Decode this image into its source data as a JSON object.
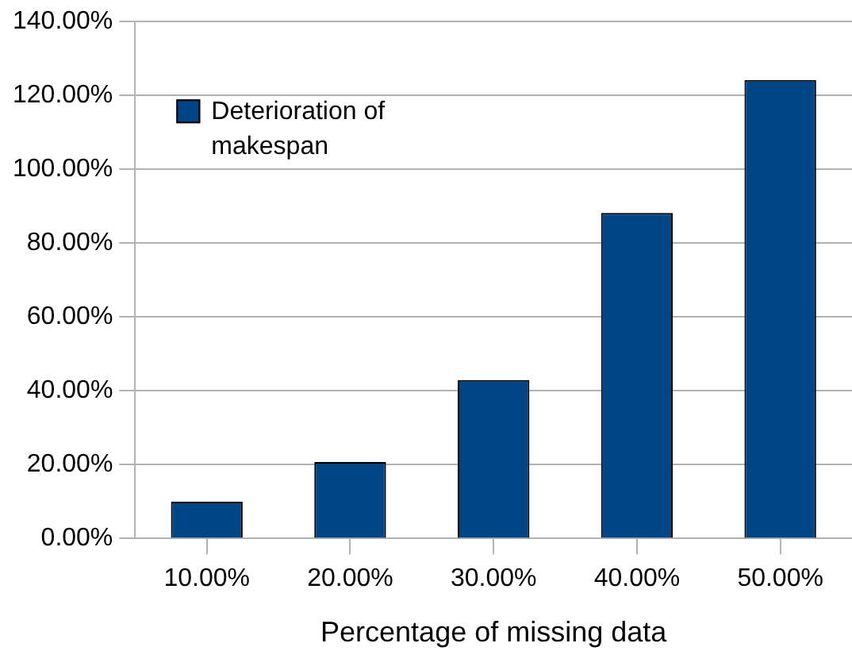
{
  "chart_data": {
    "type": "bar",
    "xlabel": "Percentage of missing data",
    "categories": [
      "10.00%",
      "20.00%",
      "30.00%",
      "40.00%",
      "50.00%"
    ],
    "series": [
      {
        "name": "Deterioration of makespan",
        "color": "#004586",
        "values": [
          10,
          20.7,
          42.9,
          88.2,
          124.2
        ]
      }
    ],
    "ylim": [
      0,
      140
    ],
    "yticks": [
      {
        "value": 0,
        "label": "0.00%"
      },
      {
        "value": 20,
        "label": "20.00%"
      },
      {
        "value": 40,
        "label": "40.00%"
      },
      {
        "value": 60,
        "label": "60.00%"
      },
      {
        "value": 80,
        "label": "80.00%"
      },
      {
        "value": 100,
        "label": "100.00%"
      },
      {
        "value": 120,
        "label": "120.00%"
      },
      {
        "value": 140,
        "label": "140.00%"
      }
    ],
    "grid": "y",
    "legend": "top left"
  }
}
